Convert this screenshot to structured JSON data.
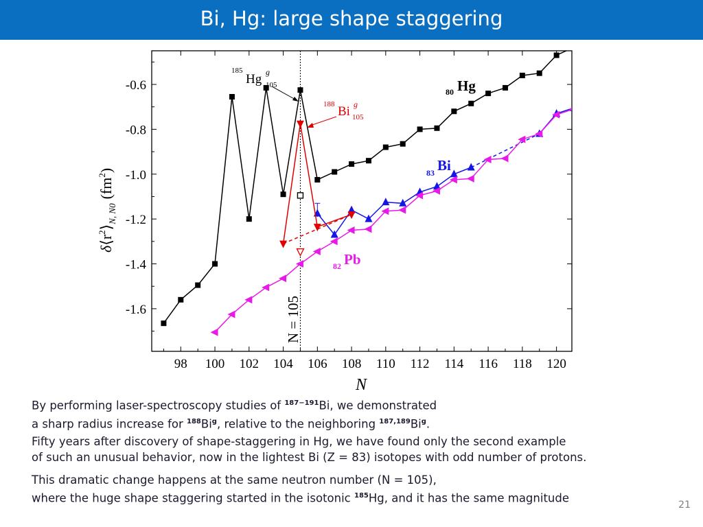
{
  "slide": {
    "title": "Bi, Hg: large shape staggering",
    "page_number": "21",
    "theme_color": "#0b6fc1"
  },
  "paragraphs": [
    {
      "line1": {
        "pre": "By performing laser-spectroscopy studies of ",
        "sup1": "187−191",
        "post": "Bi, we demonstrated"
      },
      "line2": {
        "pre": "a sharp radius increase for ",
        "sup1": "188",
        "mid": "Bi",
        "sup2": "g",
        "mid2": ", relative to the neighboring ",
        "sup3": "187,189",
        "mid3": "Bi",
        "sup4": "g",
        "post": "."
      }
    },
    {
      "line1": "Fifty years after discovery of shape-staggering in Hg, we have found only the second example",
      "line2": "of such an unusual behavior, now in the lightest Bi (Z = 83) isotopes with odd number of protons."
    },
    {
      "line1": "This dramatic change happens at the same neutron number (N = 105),",
      "line2": {
        "pre": "where the huge shape staggering started in the isotonic ",
        "sup": "185",
        "post": "Hg, and it has the same magnitude"
      }
    }
  ],
  "chart_data": {
    "type": "line",
    "xlabel": "N",
    "ylabel": "δ⟨r²⟩N, N0 (fm²)",
    "ylabel_parts": {
      "delta": "δ",
      "lb": "⟨r",
      "sq": "2",
      "rb": "⟩",
      "sub": "N, N0",
      "unit": "(fm",
      "unit_sq": "2",
      "close": ")"
    },
    "xlim": [
      96.3,
      120.9
    ],
    "ylim": [
      -1.79,
      -0.45
    ],
    "x_ticks": [
      98,
      100,
      102,
      104,
      106,
      108,
      110,
      112,
      114,
      116,
      118,
      120
    ],
    "y_ticks": [
      -1.6,
      -1.4,
      -1.2,
      -1.0,
      -0.8,
      -0.6
    ],
    "y_tick_labels": [
      "-1.6",
      "-1.4",
      "-1.2",
      "-1.0",
      "-0.8",
      "-0.6"
    ],
    "vline": {
      "x": 105,
      "label": "N = 105"
    },
    "series": [
      {
        "name": "80Hg",
        "color": "#000000",
        "marker": "square",
        "points": [
          [
            97,
            -1.665
          ],
          [
            98,
            -1.56
          ],
          [
            99,
            -1.495
          ],
          [
            100,
            -1.4
          ],
          [
            101,
            -0.655
          ],
          [
            102,
            -1.2
          ],
          [
            103,
            -0.615
          ],
          [
            104,
            -1.09
          ],
          [
            105,
            -0.625
          ],
          [
            106,
            -1.025
          ],
          [
            107,
            -0.99
          ],
          [
            108,
            -0.955
          ],
          [
            109,
            -0.94
          ],
          [
            110,
            -0.88
          ],
          [
            111,
            -0.865
          ],
          [
            112,
            -0.8
          ],
          [
            113,
            -0.795
          ],
          [
            114,
            -0.72
          ],
          [
            115,
            -0.685
          ],
          [
            116,
            -0.64
          ],
          [
            117,
            -0.615
          ],
          [
            118,
            -0.56
          ],
          [
            119,
            -0.55
          ],
          [
            120,
            -0.47
          ],
          [
            121,
            -0.435
          ]
        ]
      },
      {
        "name": "83Bi",
        "color": "#1515e6",
        "marker": "triangle-up",
        "points": [
          [
            106,
            -1.175
          ],
          [
            107,
            -1.27
          ],
          [
            108,
            -1.16
          ],
          [
            109,
            -1.2
          ],
          [
            110,
            -1.125
          ],
          [
            111,
            -1.13
          ],
          [
            112,
            -1.08
          ],
          [
            113,
            -1.055
          ],
          [
            114,
            -1.0
          ],
          [
            115,
            -0.97
          ],
          [
            119,
            -0.82
          ],
          [
            120,
            -0.73
          ],
          [
            121,
            -0.705
          ]
        ],
        "dashed_segment": [
          [
            115,
            -0.97
          ],
          [
            119,
            -0.82
          ]
        ]
      },
      {
        "name": "82Pb",
        "color": "#e81ae8",
        "marker": "triangle-left",
        "points": [
          [
            100,
            -1.705
          ],
          [
            101,
            -1.625
          ],
          [
            102,
            -1.56
          ],
          [
            103,
            -1.505
          ],
          [
            104,
            -1.465
          ],
          [
            105,
            -1.4
          ],
          [
            106,
            -1.345
          ],
          [
            107,
            -1.3
          ],
          [
            108,
            -1.25
          ],
          [
            109,
            -1.245
          ],
          [
            110,
            -1.165
          ],
          [
            111,
            -1.16
          ],
          [
            112,
            -1.095
          ],
          [
            113,
            -1.075
          ],
          [
            114,
            -1.025
          ],
          [
            115,
            -1.02
          ],
          [
            116,
            -0.935
          ],
          [
            117,
            -0.93
          ],
          [
            118,
            -0.845
          ],
          [
            119,
            -0.82
          ],
          [
            120,
            -0.735
          ],
          [
            121,
            -0.71
          ]
        ]
      },
      {
        "name": "Bi-g (odd-proton, this work)",
        "color": "#e00000",
        "marker": "triangle-down",
        "points": [
          [
            104,
            -1.31
          ],
          [
            105,
            -0.775
          ],
          [
            106,
            -1.235
          ],
          [
            108,
            -1.18
          ]
        ],
        "dashed_segment": [
          [
            104,
            -1.31
          ],
          [
            108,
            -1.18
          ]
        ]
      }
    ],
    "extra_points": [
      {
        "x": 105,
        "y": -1.095,
        "marker": "open-square",
        "color": "#000000"
      },
      {
        "x": 105,
        "y": -1.345,
        "marker": "open-triangle-down",
        "color": "#e00000"
      }
    ],
    "annotations": {
      "hg185": {
        "mass": "185",
        "el": "Hg",
        "sup": "g",
        "sub": "105",
        "color": "#000000"
      },
      "bi188": {
        "mass": "188",
        "el": "Bi",
        "sup": "g",
        "sub": "105",
        "color": "#e00000"
      },
      "hg_label": {
        "sub": "80",
        "el": "Hg",
        "color": "#000000"
      },
      "bi_label": {
        "sub": "83",
        "el": "Bi",
        "color": "#1515e6"
      },
      "pb_label": {
        "sub": "82",
        "el": "Pb",
        "color": "#e81ae8"
      }
    }
  }
}
